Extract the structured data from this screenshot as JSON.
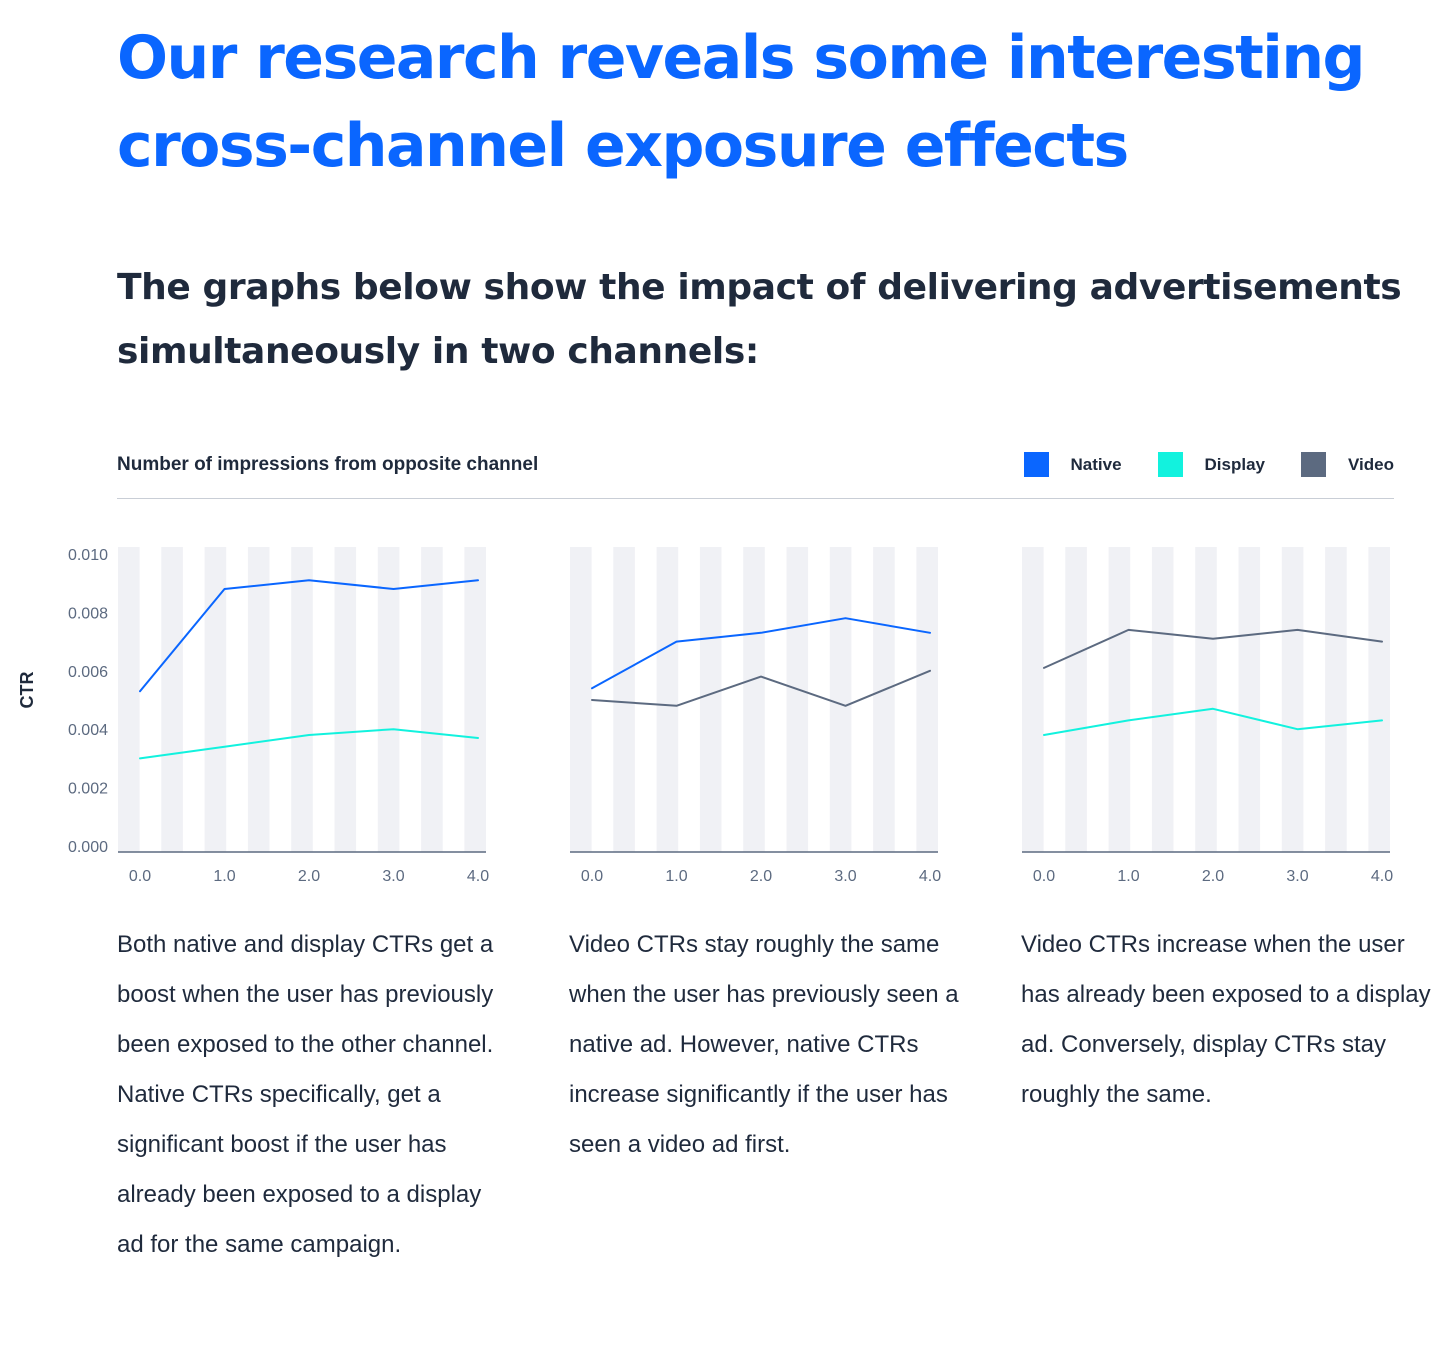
{
  "headline": "Our research reveals some interesting cross-channel exposure effects",
  "subheadline": "The graphs below show the impact of delivering advertisements simultaneously in two channels:",
  "legend_title": "Number of impressions from opposite channel",
  "legend": [
    {
      "name": "Native",
      "color": "#0a66ff"
    },
    {
      "name": "Display",
      "color": "#12f2de"
    },
    {
      "name": "Video",
      "color": "#5c6a80"
    }
  ],
  "chart_data": [
    {
      "type": "line",
      "ylabel": "CTR",
      "x": [
        0,
        1,
        2,
        3,
        4
      ],
      "xticks": [
        "0.0",
        "1.0",
        "2.0",
        "3.0",
        "4.0"
      ],
      "yticks": [
        "0.000",
        "0.002",
        "0.004",
        "0.006",
        "0.008",
        "0.010"
      ],
      "ylim": [
        0,
        0.01
      ],
      "series": [
        {
          "name": "Native",
          "color": "#0a66ff",
          "values": [
            0.0053,
            0.0088,
            0.0091,
            0.0088,
            0.0091
          ]
        },
        {
          "name": "Display",
          "color": "#12f2de",
          "values": [
            0.003,
            0.0034,
            0.0038,
            0.004,
            0.0037
          ]
        }
      ],
      "caption": "Both native and display CTRs get a boost when the user has previously been exposed to the other channel. Native CTRs specifically, get a significant boost if the user has already been exposed to a display ad for the same campaign."
    },
    {
      "type": "line",
      "x": [
        0,
        1,
        2,
        3,
        4
      ],
      "xticks": [
        "0.0",
        "1.0",
        "2.0",
        "3.0",
        "4.0"
      ],
      "ylim": [
        0,
        0.01
      ],
      "series": [
        {
          "name": "Native",
          "color": "#0a66ff",
          "values": [
            0.0054,
            0.007,
            0.0073,
            0.0078,
            0.0073
          ]
        },
        {
          "name": "Video",
          "color": "#5c6a80",
          "values": [
            0.005,
            0.0048,
            0.0058,
            0.0048,
            0.006
          ]
        }
      ],
      "caption": "Video CTRs stay roughly the same when the user has previously seen a native ad. However, native CTRs increase significantly if the user has seen a video ad first."
    },
    {
      "type": "line",
      "x": [
        0,
        1,
        2,
        3,
        4
      ],
      "xticks": [
        "0.0",
        "1.0",
        "2.0",
        "3.0",
        "4.0"
      ],
      "ylim": [
        0,
        0.01
      ],
      "series": [
        {
          "name": "Video",
          "color": "#5c6a80",
          "values": [
            0.0061,
            0.0074,
            0.0071,
            0.0074,
            0.007
          ]
        },
        {
          "name": "Display",
          "color": "#12f2de",
          "values": [
            0.0038,
            0.0043,
            0.0047,
            0.004,
            0.0043
          ]
        }
      ],
      "caption": "Video CTRs increase when the user has already been exposed to a display ad. Conversely, display CTRs stay roughly the same."
    }
  ]
}
